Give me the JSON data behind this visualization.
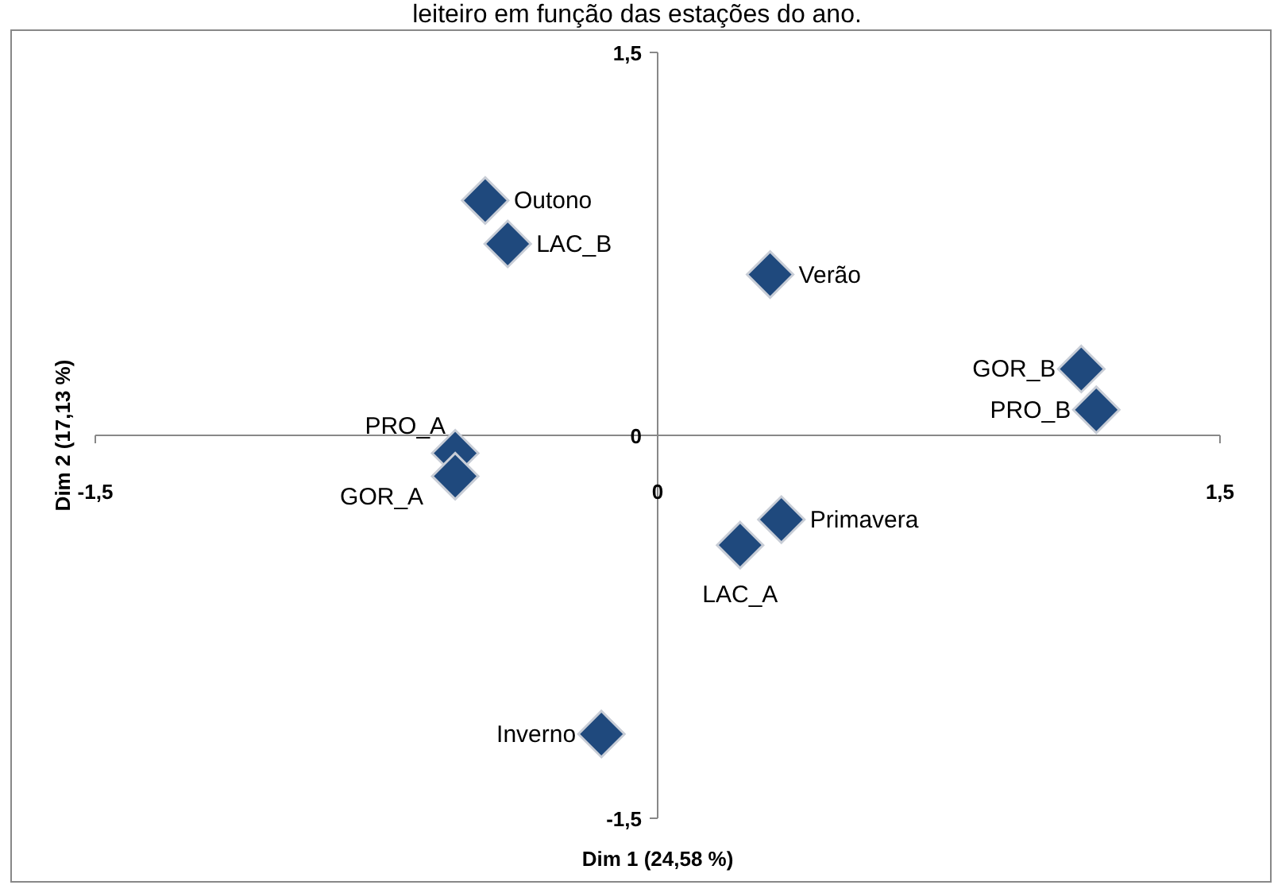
{
  "chart_data": {
    "type": "scatter",
    "title": "leiteiro em função das estações do ano.",
    "xlabel": "Dim 1 (24,58 %)",
    "ylabel": "Dim 2 (17,13 %)",
    "xlim": [
      -1.5,
      1.5
    ],
    "ylim": [
      -1.5,
      1.5
    ],
    "xticks": [
      {
        "value": -1.5,
        "label": "-1,5"
      },
      0,
      {
        "value": 1.5,
        "label": "1,5"
      }
    ],
    "yticks": [
      {
        "value": -1.5,
        "label": "-1,5"
      },
      0,
      {
        "value": 1.5,
        "label": "1,5"
      }
    ],
    "marker": "diamond",
    "grid": false,
    "x": [
      -0.46,
      -0.4,
      0.3,
      1.13,
      1.17,
      -0.54,
      -0.54,
      0.33,
      0.22,
      -0.15
    ],
    "series": [
      {
        "color": "#1f497d",
        "values": [
          0.92,
          0.75,
          0.63,
          0.26,
          0.1,
          -0.07,
          -0.16,
          -0.33,
          -0.43,
          -1.17
        ]
      }
    ],
    "annotations": [
      {
        "text": "Outono",
        "x": -0.46,
        "y": 0.92
      },
      {
        "text": "LAC_B",
        "x": -0.4,
        "y": 0.75
      },
      {
        "text": "Verão",
        "x": 0.3,
        "y": 0.63
      },
      {
        "text": "GOR_B",
        "x": 1.13,
        "y": 0.26
      },
      {
        "text": "PRO_B",
        "x": 1.17,
        "y": 0.1
      },
      {
        "text": "PRO_A",
        "x": -0.54,
        "y": -0.07
      },
      {
        "text": "GOR_A",
        "x": -0.54,
        "y": -0.16
      },
      {
        "text": "Primavera",
        "x": 0.33,
        "y": -0.33
      },
      {
        "text": "LAC_A",
        "x": 0.22,
        "y": -0.43
      },
      {
        "text": "Inverno",
        "x": -0.15,
        "y": -1.17
      }
    ]
  }
}
